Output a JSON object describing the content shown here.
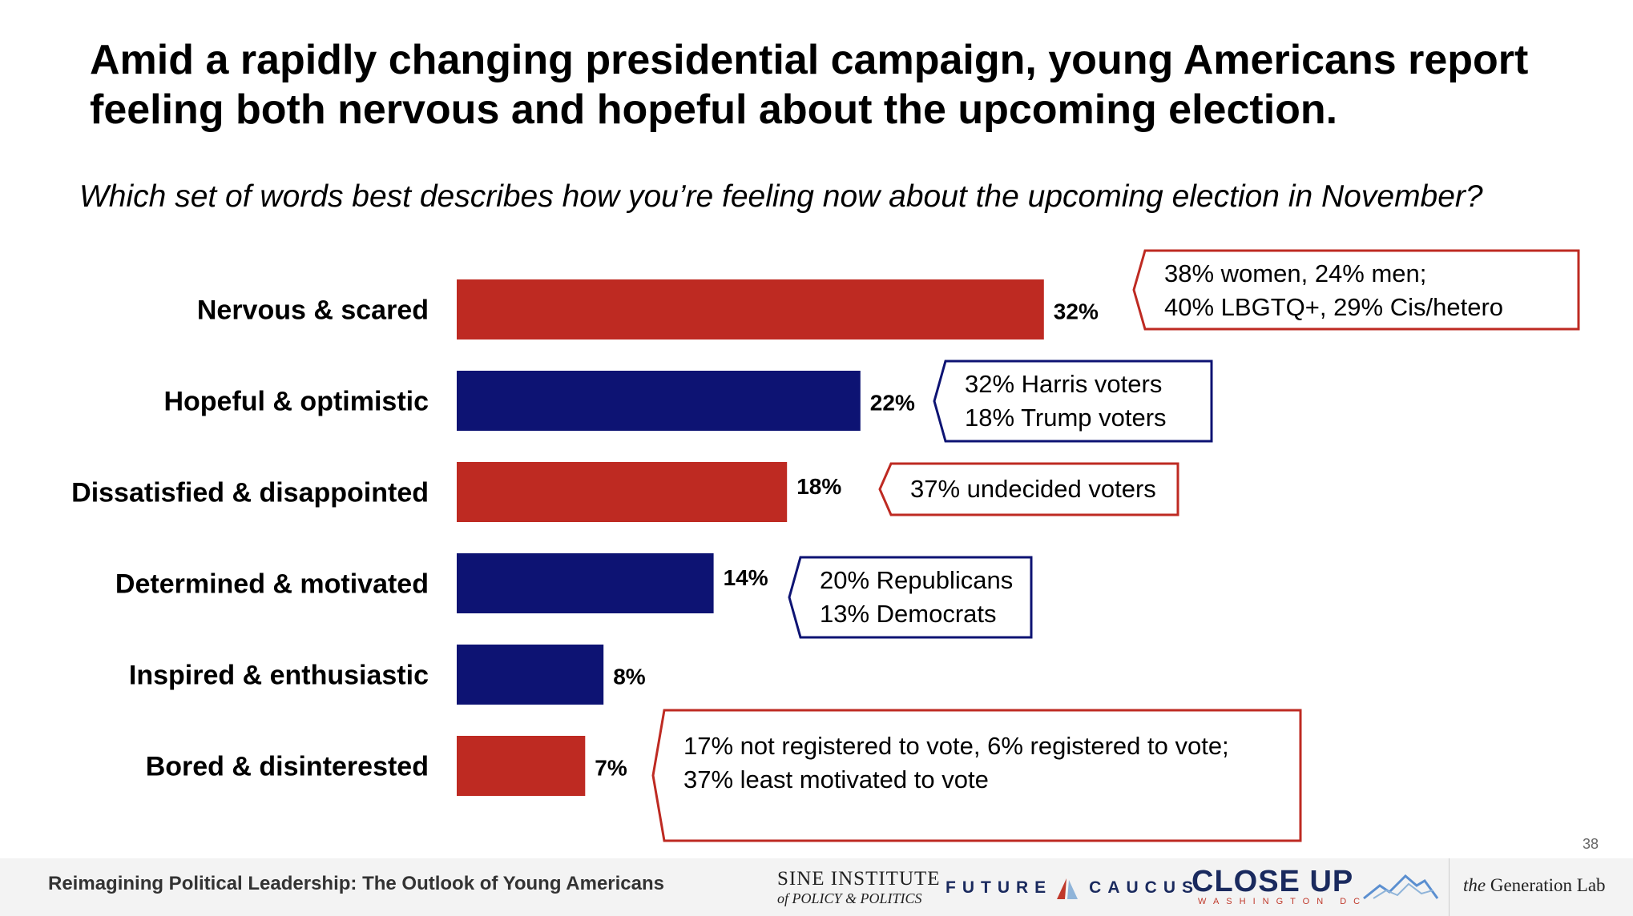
{
  "title": "Amid a rapidly changing presidential campaign, young Americans report feeling both nervous and hopeful about the upcoming election.",
  "question": "Which set of words best describes how you’re feeling now about the upcoming election in November?",
  "chart_data": {
    "type": "bar",
    "orientation": "horizontal",
    "categories": [
      "Nervous & scared",
      "Hopeful & optimistic",
      "Dissatisfied & disappointed",
      "Determined & motivated",
      "Inspired & enthusiastic",
      "Bored & disinterested"
    ],
    "values": [
      32,
      22,
      18,
      14,
      8,
      7
    ],
    "value_labels": [
      "32%",
      "22%",
      "18%",
      "14%",
      "8%",
      "7%"
    ],
    "bar_colors": [
      "#be2a22",
      "#0d1373",
      "#be2a22",
      "#0d1373",
      "#0d1373",
      "#be2a22"
    ],
    "grid": false,
    "annotations": [
      {
        "category": "Nervous & scared",
        "color": "#be2a22",
        "lines": [
          "38% women, 24% men;",
          "40% LBGTQ+, 29% Cis/hetero"
        ]
      },
      {
        "category": "Hopeful & optimistic",
        "color": "#0d1373",
        "lines": [
          "32% Harris voters",
          "18% Trump voters"
        ]
      },
      {
        "category": "Dissatisfied & disappointed",
        "color": "#be2a22",
        "lines": [
          "37% undecided voters"
        ]
      },
      {
        "category": "Determined & motivated",
        "color": "#0d1373",
        "lines": [
          "20% Republicans",
          "13% Democrats"
        ]
      },
      {
        "category": "Bored & disinterested",
        "color": "#be2a22",
        "lines": [
          "17% not registered to vote, 6% registered to vote;",
          "37% least motivated to vote"
        ]
      }
    ]
  },
  "footer": {
    "text": "Reimagining Political Leadership:  The Outlook of Young Americans",
    "page_number": "38",
    "logos": {
      "sine_line1": "SINE INSTITUTE",
      "sine_line2": "of POLICY & POLITICS",
      "future_left": "FUTURE",
      "future_right": "CAUCUS",
      "closeup_main": "CLOSE UP",
      "closeup_sub": "WASHINGTON DC",
      "genlab_italic": "the",
      "genlab_rest": " Generation Lab"
    }
  }
}
